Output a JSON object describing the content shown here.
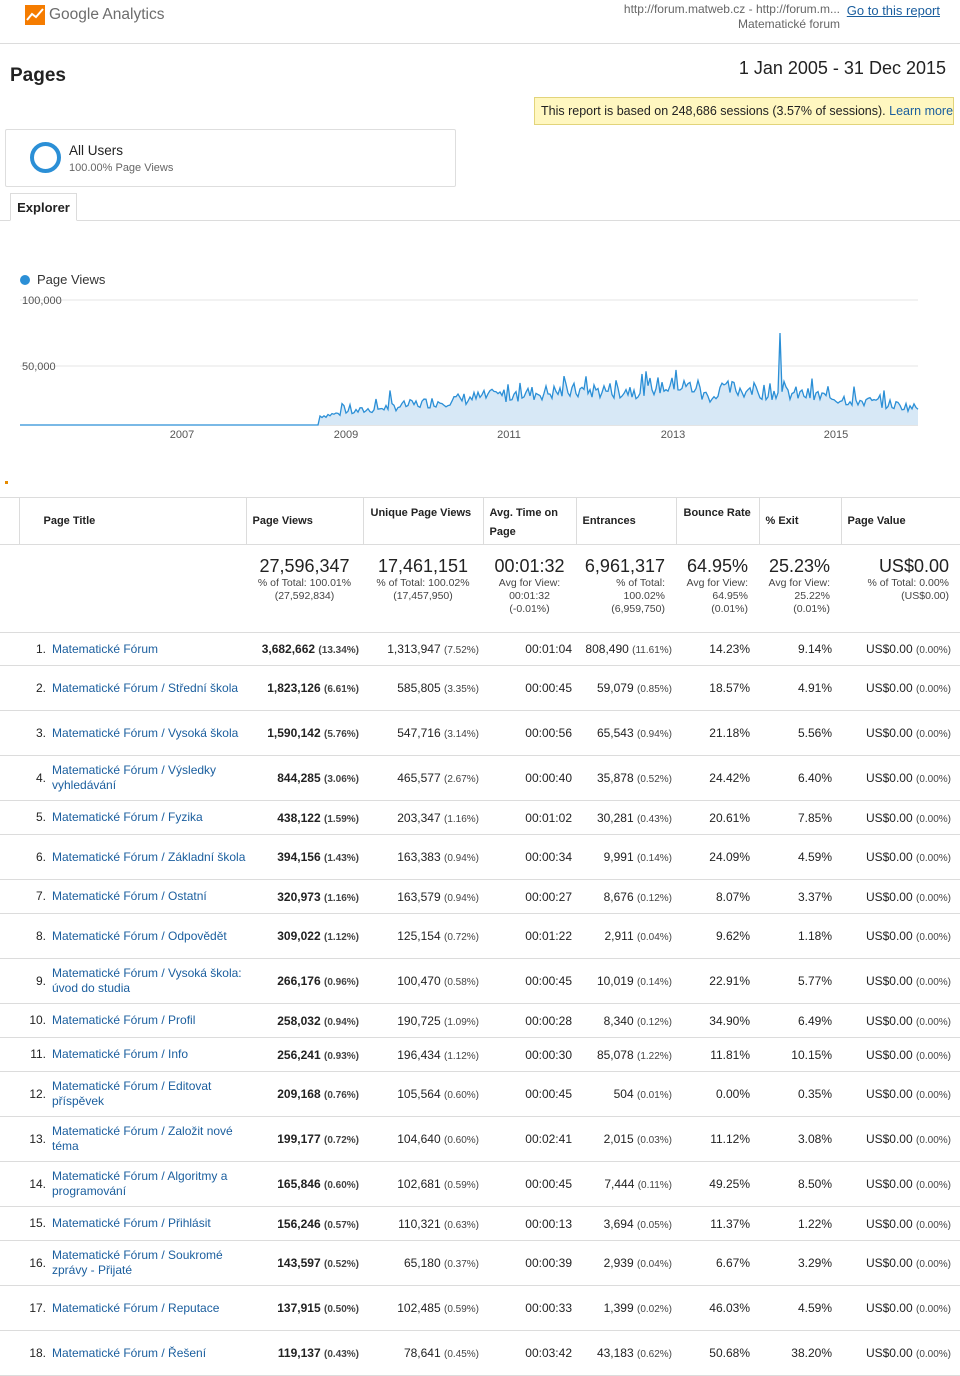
{
  "header": {
    "logo_text": "Google Analytics",
    "site_line1": "http://forum.matweb.cz - http://forum.m...",
    "site_line2": "Matematické forum",
    "go_to_report": "Go to this report"
  },
  "page_title": "Pages",
  "date_range": "1 Jan 2005 - 31 Dec 2015",
  "sampling": {
    "text": "This report is based on 248,686 sessions (3.57% of sessions).",
    "link": "Learn more"
  },
  "segment": {
    "name": "All Users",
    "sub": "100.00% Page Views"
  },
  "tabs": {
    "explorer": "Explorer"
  },
  "chart_data": {
    "type": "line",
    "series": [
      {
        "name": "Page Views"
      }
    ],
    "y_ticks": [
      "100,000",
      "50,000"
    ],
    "x_ticks": [
      "2007",
      "2009",
      "2011",
      "2013",
      "2015"
    ],
    "color": "#2b8fd6"
  },
  "columns": {
    "page_title": "Page Title",
    "page_views": "Page Views",
    "unique_page_views": "Unique Page Views",
    "avg_time_top": "Avg. Time on",
    "avg_time_bottom": "Page",
    "entrances": "Entrances",
    "bounce_rate": "Bounce Rate",
    "exit": "% Exit",
    "page_value": "Page Value"
  },
  "totals": {
    "page_views": {
      "value": "27,596,347",
      "l1": "% of Total: 100.01%",
      "l2": "(27,592,834)"
    },
    "unique_page_views": {
      "value": "17,461,151",
      "l1": "% of Total: 100.02%",
      "l2": "(17,457,950)"
    },
    "avg_time": {
      "value": "00:01:32",
      "l1": "Avg for View:",
      "l2": "00:01:32",
      "l3": "(-0.01%)"
    },
    "entrances": {
      "value": "6,961,317",
      "l1": "% of Total:",
      "l2": "100.02%",
      "l3": "(6,959,750)"
    },
    "bounce_rate": {
      "value": "64.95%",
      "l1": "Avg for View:",
      "l2": "64.95%",
      "l3": "(0.01%)"
    },
    "exit": {
      "value": "25.23%",
      "l1": "Avg for View:",
      "l2": "25.22%",
      "l3": "(0.01%)"
    },
    "page_value": {
      "value": "US$0.00",
      "l1": "% of Total: 0.00%",
      "l2": "(US$0.00)"
    }
  },
  "rows": [
    {
      "idx": "1.",
      "title": "Matematické Fórum",
      "pv": "3,682,662",
      "pv_pct": "(13.34%)",
      "upv": "1,313,947",
      "upv_pct": "(7.52%)",
      "time": "00:01:04",
      "ent": "808,490",
      "ent_pct": "(11.61%)",
      "bounce": "14.23%",
      "exit": "9.14%",
      "val": "US$0.00",
      "val_pct": "(0.00%)"
    },
    {
      "idx": "2.",
      "title": "Matematické Fórum / Střední škola",
      "pv": "1,823,126",
      "pv_pct": "(6.61%)",
      "upv": "585,805",
      "upv_pct": "(3.35%)",
      "time": "00:00:45",
      "ent": "59,079",
      "ent_pct": "(0.85%)",
      "bounce": "18.57%",
      "exit": "4.91%",
      "val": "US$0.00",
      "val_pct": "(0.00%)"
    },
    {
      "idx": "3.",
      "title": "Matematické Fórum / Vysoká škola",
      "pv": "1,590,142",
      "pv_pct": "(5.76%)",
      "upv": "547,716",
      "upv_pct": "(3.14%)",
      "time": "00:00:56",
      "ent": "65,543",
      "ent_pct": "(0.94%)",
      "bounce": "21.18%",
      "exit": "5.56%",
      "val": "US$0.00",
      "val_pct": "(0.00%)"
    },
    {
      "idx": "4.",
      "title": "Matematické Fórum / Výsledky vyhledávání",
      "pv": "844,285",
      "pv_pct": "(3.06%)",
      "upv": "465,577",
      "upv_pct": "(2.67%)",
      "time": "00:00:40",
      "ent": "35,878",
      "ent_pct": "(0.52%)",
      "bounce": "24.42%",
      "exit": "6.40%",
      "val": "US$0.00",
      "val_pct": "(0.00%)"
    },
    {
      "idx": "5.",
      "title": "Matematické Fórum / Fyzika",
      "pv": "438,122",
      "pv_pct": "(1.59%)",
      "upv": "203,347",
      "upv_pct": "(1.16%)",
      "time": "00:01:02",
      "ent": "30,281",
      "ent_pct": "(0.43%)",
      "bounce": "20.61%",
      "exit": "7.85%",
      "val": "US$0.00",
      "val_pct": "(0.00%)"
    },
    {
      "idx": "6.",
      "title": "Matematické Fórum / Základní škola",
      "pv": "394,156",
      "pv_pct": "(1.43%)",
      "upv": "163,383",
      "upv_pct": "(0.94%)",
      "time": "00:00:34",
      "ent": "9,991",
      "ent_pct": "(0.14%)",
      "bounce": "24.09%",
      "exit": "4.59%",
      "val": "US$0.00",
      "val_pct": "(0.00%)"
    },
    {
      "idx": "7.",
      "title": "Matematické Fórum / Ostatní",
      "pv": "320,973",
      "pv_pct": "(1.16%)",
      "upv": "163,579",
      "upv_pct": "(0.94%)",
      "time": "00:00:27",
      "ent": "8,676",
      "ent_pct": "(0.12%)",
      "bounce": "8.07%",
      "exit": "3.37%",
      "val": "US$0.00",
      "val_pct": "(0.00%)"
    },
    {
      "idx": "8.",
      "title": "Matematické Fórum / Odpovědět",
      "pv": "309,022",
      "pv_pct": "(1.12%)",
      "upv": "125,154",
      "upv_pct": "(0.72%)",
      "time": "00:01:22",
      "ent": "2,911",
      "ent_pct": "(0.04%)",
      "bounce": "9.62%",
      "exit": "1.18%",
      "val": "US$0.00",
      "val_pct": "(0.00%)"
    },
    {
      "idx": "9.",
      "title": "Matematické Fórum / Vysoká škola: úvod do studia",
      "pv": "266,176",
      "pv_pct": "(0.96%)",
      "upv": "100,470",
      "upv_pct": "(0.58%)",
      "time": "00:00:45",
      "ent": "10,019",
      "ent_pct": "(0.14%)",
      "bounce": "22.91%",
      "exit": "5.77%",
      "val": "US$0.00",
      "val_pct": "(0.00%)"
    },
    {
      "idx": "10.",
      "title": "Matematické Fórum / Profil",
      "pv": "258,032",
      "pv_pct": "(0.94%)",
      "upv": "190,725",
      "upv_pct": "(1.09%)",
      "time": "00:00:28",
      "ent": "8,340",
      "ent_pct": "(0.12%)",
      "bounce": "34.90%",
      "exit": "6.49%",
      "val": "US$0.00",
      "val_pct": "(0.00%)"
    },
    {
      "idx": "11.",
      "title": "Matematické Fórum / Info",
      "pv": "256,241",
      "pv_pct": "(0.93%)",
      "upv": "196,434",
      "upv_pct": "(1.12%)",
      "time": "00:00:30",
      "ent": "85,078",
      "ent_pct": "(1.22%)",
      "bounce": "11.81%",
      "exit": "10.15%",
      "val": "US$0.00",
      "val_pct": "(0.00%)"
    },
    {
      "idx": "12.",
      "title": "Matematické Fórum / Editovat příspěvek",
      "pv": "209,168",
      "pv_pct": "(0.76%)",
      "upv": "105,564",
      "upv_pct": "(0.60%)",
      "time": "00:00:45",
      "ent": "504",
      "ent_pct": "(0.01%)",
      "bounce": "0.00%",
      "exit": "0.35%",
      "val": "US$0.00",
      "val_pct": "(0.00%)"
    },
    {
      "idx": "13.",
      "title": "Matematické Fórum / Založit nové téma",
      "pv": "199,177",
      "pv_pct": "(0.72%)",
      "upv": "104,640",
      "upv_pct": "(0.60%)",
      "time": "00:02:41",
      "ent": "2,015",
      "ent_pct": "(0.03%)",
      "bounce": "11.12%",
      "exit": "3.08%",
      "val": "US$0.00",
      "val_pct": "(0.00%)"
    },
    {
      "idx": "14.",
      "title": "Matematické Fórum / Algoritmy a programování",
      "pv": "165,846",
      "pv_pct": "(0.60%)",
      "upv": "102,681",
      "upv_pct": "(0.59%)",
      "time": "00:00:45",
      "ent": "7,444",
      "ent_pct": "(0.11%)",
      "bounce": "49.25%",
      "exit": "8.50%",
      "val": "US$0.00",
      "val_pct": "(0.00%)"
    },
    {
      "idx": "15.",
      "title": "Matematické Fórum / Přihlásit",
      "pv": "156,246",
      "pv_pct": "(0.57%)",
      "upv": "110,321",
      "upv_pct": "(0.63%)",
      "time": "00:00:13",
      "ent": "3,694",
      "ent_pct": "(0.05%)",
      "bounce": "11.37%",
      "exit": "1.22%",
      "val": "US$0.00",
      "val_pct": "(0.00%)"
    },
    {
      "idx": "16.",
      "title": "Matematické Fórum / Soukromé zprávy - Přijaté",
      "pv": "143,597",
      "pv_pct": "(0.52%)",
      "upv": "65,180",
      "upv_pct": "(0.37%)",
      "time": "00:00:39",
      "ent": "2,939",
      "ent_pct": "(0.04%)",
      "bounce": "6.67%",
      "exit": "3.29%",
      "val": "US$0.00",
      "val_pct": "(0.00%)"
    },
    {
      "idx": "17.",
      "title": "Matematické Fórum / Reputace",
      "pv": "137,915",
      "pv_pct": "(0.50%)",
      "upv": "102,485",
      "upv_pct": "(0.59%)",
      "time": "00:00:33",
      "ent": "1,399",
      "ent_pct": "(0.02%)",
      "bounce": "46.03%",
      "exit": "4.59%",
      "val": "US$0.00",
      "val_pct": "(0.00%)"
    },
    {
      "idx": "18.",
      "title": "Matematické Fórum / Řešení",
      "pv": "119,137",
      "pv_pct": "(0.43%)",
      "upv": "78,641",
      "upv_pct": "(0.45%)",
      "time": "00:03:42",
      "ent": "43,183",
      "ent_pct": "(0.62%)",
      "bounce": "50.68%",
      "exit": "38.20%",
      "val": "US$0.00",
      "val_pct": "(0.00%)"
    }
  ]
}
